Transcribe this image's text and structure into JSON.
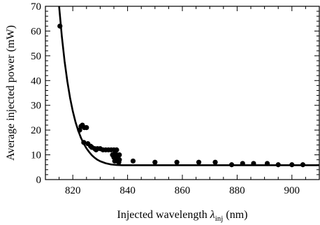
{
  "chart_data": {
    "type": "scatter",
    "xlabel": {
      "main": "Injected wavelength ",
      "symbol": "λ",
      "sub": "inj",
      "unit": " (nm)"
    },
    "ylabel": "Average injected power (mW)",
    "xlim": [
      810,
      910
    ],
    "ylim": [
      0,
      70
    ],
    "xticks": [
      820,
      840,
      860,
      880,
      900
    ],
    "yticks": [
      0,
      10,
      20,
      30,
      40,
      50,
      60,
      70
    ],
    "grid": false,
    "legend": "none",
    "series": [
      {
        "kind": "points",
        "x": [
          815.3,
          822.5,
          823.0,
          823.5,
          824.2,
          825.0,
          824.0,
          825.5,
          826.5,
          827.0,
          828.0,
          828.5,
          829.0,
          830.0,
          831.0,
          832.0,
          833.0,
          834.0,
          834.5,
          835.0,
          835.0,
          835.3,
          835.5,
          835.8,
          836.0,
          836.0,
          836.2,
          836.5,
          836.8,
          837.0,
          837.0,
          842.0,
          850.0,
          858.0,
          866.0,
          872.0,
          878.0,
          882.0,
          886.0,
          891.0,
          895.0,
          900.0,
          904.0
        ],
        "y": [
          62.0,
          20.0,
          21.5,
          22.0,
          21.0,
          21.0,
          15.0,
          14.5,
          13.5,
          13.0,
          12.5,
          12.0,
          12.5,
          12.5,
          12.0,
          12.0,
          12.0,
          12.0,
          10.0,
          12.0,
          9.0,
          7.5,
          11.0,
          10.0,
          8.0,
          12.0,
          7.5,
          9.0,
          7.0,
          8.0,
          10.0,
          7.5,
          7.0,
          7.0,
          7.0,
          7.0,
          6.0,
          6.5,
          6.5,
          6.5,
          6.0,
          6.0,
          6.0
        ]
      },
      {
        "kind": "curve",
        "x": [
          815,
          816,
          817,
          818,
          819,
          820,
          821,
          822,
          823,
          824,
          825,
          826,
          827,
          828,
          829,
          830,
          832,
          834,
          836,
          838,
          840,
          845,
          850,
          860,
          870,
          880,
          890,
          900,
          910
        ],
        "y": [
          70.0,
          57.8,
          47.8,
          39.7,
          33.0,
          27.6,
          23.2,
          19.7,
          16.8,
          14.5,
          12.6,
          11.1,
          9.8,
          8.8,
          8.0,
          7.4,
          6.6,
          6.1,
          5.9,
          5.8,
          5.8,
          5.8,
          5.8,
          5.8,
          5.8,
          5.8,
          5.8,
          5.8,
          5.8
        ]
      }
    ]
  }
}
